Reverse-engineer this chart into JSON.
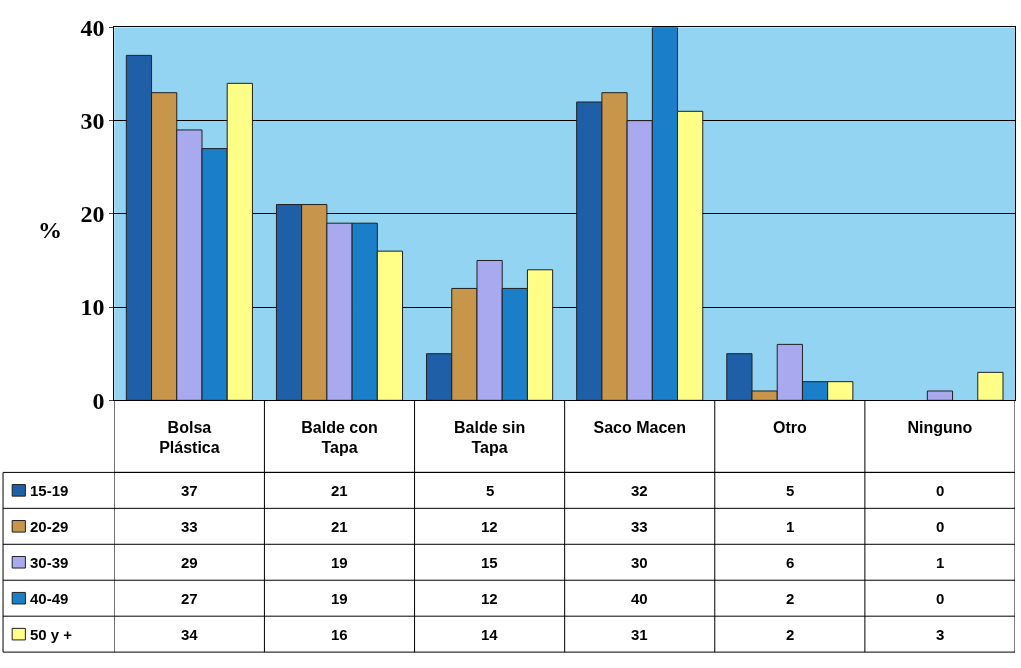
{
  "chart_data": {
    "type": "bar",
    "ylabel": "%",
    "categories": [
      "Bolsa Plástica",
      "Balde con Tapa",
      "Balde sin Tapa",
      "Saco Macen",
      "Otro",
      "Ninguno"
    ],
    "series": [
      {
        "name": "15-19",
        "color": "#1f5fa8",
        "values": [
          37,
          21,
          5,
          32,
          5,
          0
        ]
      },
      {
        "name": "20-29",
        "color": "#c8964a",
        "values": [
          33,
          21,
          12,
          33,
          1,
          0
        ]
      },
      {
        "name": "30-39",
        "color": "#a9a9f0",
        "values": [
          29,
          19,
          15,
          30,
          6,
          1
        ]
      },
      {
        "name": "40-49",
        "color": "#1a7fc8",
        "values": [
          27,
          19,
          12,
          40,
          2,
          0
        ]
      },
      {
        "name": "50 y +",
        "color": "#ffff88",
        "values": [
          34,
          16,
          14,
          31,
          2,
          3
        ]
      }
    ],
    "ylim": [
      0,
      40
    ],
    "yticks": [
      0,
      10,
      20,
      30,
      40
    ],
    "grid": "y",
    "legend": "bottom left",
    "data_labels": true
  }
}
